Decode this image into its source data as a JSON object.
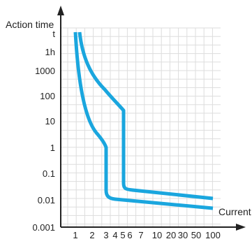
{
  "chart_data": {
    "type": "line",
    "xlabel": "Current",
    "ylabel": "Action time",
    "x_ticks": [
      "1",
      "2",
      "3",
      "4",
      "5",
      "6",
      "7",
      "10",
      "20",
      "30",
      "50",
      "100"
    ],
    "y_ticks": [
      "t",
      "1h",
      "1000",
      "100",
      "10",
      "1",
      "0.1",
      "0.01",
      "0.001"
    ],
    "grid": true,
    "color": "#1aa6de",
    "series": [
      {
        "points": [
          {
            "x": "1",
            "y": "t"
          },
          {
            "x": "1",
            "y": "1000"
          },
          {
            "x": "2",
            "y": "10"
          },
          {
            "x": "3",
            "y": "1"
          },
          {
            "x": "3",
            "y": "0.01"
          },
          {
            "x": "4",
            "y": "0.01"
          },
          {
            "x": "100",
            "y": "0.005"
          }
        ]
      },
      {
        "points": [
          {
            "x": "1",
            "y": "t"
          },
          {
            "x": "2",
            "y": "1000"
          },
          {
            "x": "5",
            "y": "10"
          },
          {
            "x": "5",
            "y": "0.01"
          },
          {
            "x": "6",
            "y": "0.01"
          },
          {
            "x": "100",
            "y": "0.01"
          }
        ]
      }
    ]
  }
}
